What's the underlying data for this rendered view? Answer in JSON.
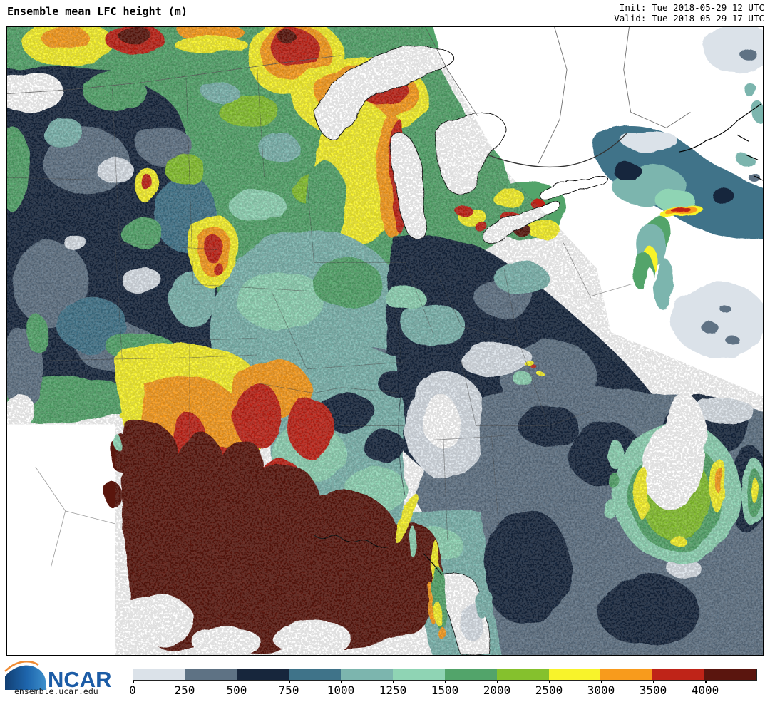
{
  "header": {
    "title": "Ensemble mean LFC height (m)",
    "init": "Init: Tue 2018-05-29 12 UTC",
    "valid": "Valid: Tue 2018-05-29 17 UTC"
  },
  "branding": {
    "logo_text": "NCAR",
    "url": "ensemble.ucar.edu",
    "logo_blue": "#1c5ca6",
    "logo_orange": "#f08b33"
  },
  "colorbar": {
    "ticks": [
      "0",
      "250",
      "500",
      "750",
      "1000",
      "1250",
      "1500",
      "2000",
      "2500",
      "3000",
      "3500",
      "4000"
    ],
    "segments": [
      {
        "range": "0-250",
        "color": "#dbe2e9"
      },
      {
        "range": "250-500",
        "color": "#5e7284"
      },
      {
        "range": "500-750",
        "color": "#17263c"
      },
      {
        "range": "750-1000",
        "color": "#3f7389"
      },
      {
        "range": "1000-1250",
        "color": "#7cb5ae"
      },
      {
        "range": "1250-1500",
        "color": "#8fd4b4"
      },
      {
        "range": "1500-2000",
        "color": "#52a46a"
      },
      {
        "range": "2000-2500",
        "color": "#85c12d"
      },
      {
        "range": "2500-3000",
        "color": "#f8f32b"
      },
      {
        "range": "3000-3500",
        "color": "#f89b1c"
      },
      {
        "range": "3500-4000",
        "color": "#bf2418"
      },
      {
        "range": "4000+",
        "color": "#5a150e"
      }
    ]
  },
  "chart_data": {
    "type": "heatmap",
    "title": "Ensemble mean LFC height (m)",
    "units": "m",
    "levels": [
      0,
      250,
      500,
      750,
      1000,
      1250,
      1500,
      2000,
      2500,
      3000,
      3500,
      4000
    ],
    "colors": [
      "#dbe2e9",
      "#5e7284",
      "#17263c",
      "#3f7389",
      "#7cb5ae",
      "#8fd4b4",
      "#52a46a",
      "#85c12d",
      "#f8f32b",
      "#f89b1c",
      "#bf2418",
      "#5a150e"
    ],
    "legend_position": "bottom"
  }
}
